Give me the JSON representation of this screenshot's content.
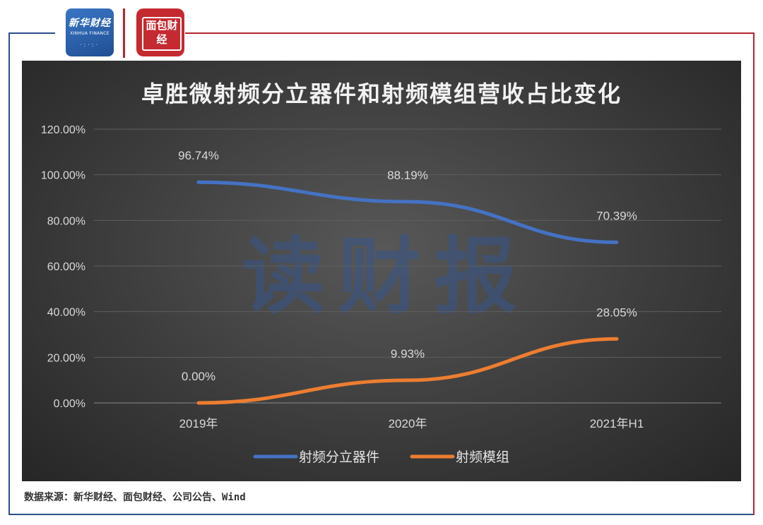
{
  "branding": {
    "xinhua_logo_cn": "新华财经",
    "xinhua_logo_en": "XINHUA FINANCE",
    "mianbao_logo": "面包财经"
  },
  "watermark": "读财报",
  "source": "数据来源：新华财经、面包财经、公司公告、Wind",
  "colors": {
    "series_1": "#4472c4",
    "series_2": "#ed7d31",
    "frame_blue": "#2d4f8a",
    "frame_red": "#b8242f"
  },
  "chart_data": {
    "type": "line",
    "title": "卓胜微射频分立器件和射频模组营收占比变化",
    "categories": [
      "2019年",
      "2020年",
      "2021年H1"
    ],
    "y_ticks": [
      "0.00%",
      "20.00%",
      "40.00%",
      "60.00%",
      "80.00%",
      "100.00%",
      "120.00%"
    ],
    "ylim": [
      0,
      120
    ],
    "grid": true,
    "legend_position": "bottom",
    "series": [
      {
        "name": "射频分立器件",
        "values": [
          96.74,
          88.19,
          70.39
        ],
        "labels": [
          "96.74%",
          "88.19%",
          "70.39%"
        ],
        "color": "#4472c4"
      },
      {
        "name": "射频模组",
        "values": [
          0.0,
          9.93,
          28.05
        ],
        "labels": [
          "0.00%",
          "9.93%",
          "28.05%"
        ],
        "color": "#ed7d31"
      }
    ]
  }
}
